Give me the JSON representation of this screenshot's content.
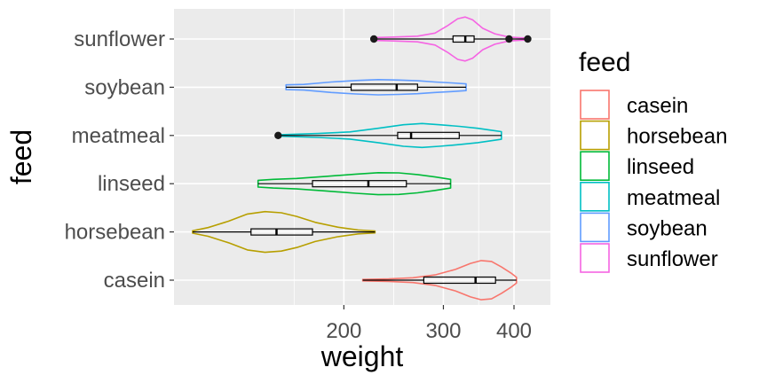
{
  "chart_data": {
    "type": "violin",
    "orientation": "horizontal",
    "x_scale": "log10",
    "xlabel": "weight",
    "ylabel": "feed",
    "xlim": [
      108,
      430
    ],
    "x_ticks": [
      200,
      300,
      400
    ],
    "x_tick_labels": [
      "200",
      "300",
      "400"
    ],
    "categories": [
      "casein",
      "horsebean",
      "linseed",
      "meatmeal",
      "soybean",
      "sunflower"
    ],
    "legend": {
      "title": "feed",
      "placement": "right",
      "entries": [
        "casein",
        "horsebean",
        "linseed",
        "meatmeal",
        "soybean",
        "sunflower"
      ]
    },
    "colors": {
      "casein": "#F8766D",
      "horsebean": "#B79F00",
      "linseed": "#00BA38",
      "meatmeal": "#00BFC4",
      "soybean": "#619CFF",
      "sunflower": "#F564E3"
    },
    "panel_background": "#EBEBEB",
    "grid": true,
    "series": [
      {
        "name": "casein",
        "min": 216,
        "max": 404,
        "q1": 277,
        "median": 342,
        "q3": 371,
        "outliers": [],
        "density": [
          [
            216,
            0.03
          ],
          [
            240,
            0.05
          ],
          [
            265,
            0.1
          ],
          [
            290,
            0.22
          ],
          [
            315,
            0.45
          ],
          [
            335,
            0.7
          ],
          [
            350,
            0.82
          ],
          [
            365,
            0.78
          ],
          [
            380,
            0.55
          ],
          [
            395,
            0.3
          ],
          [
            404,
            0.12
          ]
        ]
      },
      {
        "name": "horsebean",
        "min": 108,
        "max": 227,
        "q1": 137,
        "median": 152,
        "q3": 176,
        "outliers": [],
        "density": [
          [
            108,
            0.05
          ],
          [
            115,
            0.18
          ],
          [
            125,
            0.45
          ],
          [
            135,
            0.75
          ],
          [
            145,
            0.85
          ],
          [
            155,
            0.8
          ],
          [
            165,
            0.65
          ],
          [
            178,
            0.4
          ],
          [
            195,
            0.2
          ],
          [
            212,
            0.08
          ],
          [
            227,
            0.04
          ]
        ]
      },
      {
        "name": "linseed",
        "min": 141,
        "max": 309,
        "q1": 176,
        "median": 221,
        "q3": 258,
        "outliers": [],
        "density": [
          [
            141,
            0.14
          ],
          [
            150,
            0.18
          ],
          [
            165,
            0.22
          ],
          [
            185,
            0.3
          ],
          [
            210,
            0.4
          ],
          [
            230,
            0.46
          ],
          [
            250,
            0.45
          ],
          [
            270,
            0.38
          ],
          [
            290,
            0.28
          ],
          [
            309,
            0.18
          ]
        ]
      },
      {
        "name": "meatmeal",
        "min": 153,
        "max": 380,
        "q1": 249,
        "median": 263,
        "q3": 320,
        "outliers": [
          153
        ],
        "density": [
          [
            153,
            0.03
          ],
          [
            180,
            0.08
          ],
          [
            205,
            0.15
          ],
          [
            230,
            0.3
          ],
          [
            255,
            0.45
          ],
          [
            275,
            0.5
          ],
          [
            295,
            0.45
          ],
          [
            320,
            0.38
          ],
          [
            345,
            0.3
          ],
          [
            365,
            0.22
          ],
          [
            380,
            0.16
          ]
        ]
      },
      {
        "name": "soybean",
        "min": 158,
        "max": 329,
        "q1": 206,
        "median": 248,
        "q3": 270,
        "outliers": [],
        "density": [
          [
            158,
            0.1
          ],
          [
            170,
            0.12
          ],
          [
            190,
            0.22
          ],
          [
            210,
            0.28
          ],
          [
            230,
            0.32
          ],
          [
            250,
            0.3
          ],
          [
            270,
            0.27
          ],
          [
            290,
            0.22
          ],
          [
            310,
            0.18
          ],
          [
            329,
            0.14
          ]
        ]
      },
      {
        "name": "sunflower",
        "min": 226,
        "max": 423,
        "q1": 312,
        "median": 328,
        "q3": 340,
        "outliers": [
          226,
          392,
          423
        ],
        "density": [
          [
            226,
            0.06
          ],
          [
            245,
            0.08
          ],
          [
            270,
            0.12
          ],
          [
            290,
            0.25
          ],
          [
            305,
            0.55
          ],
          [
            318,
            0.85
          ],
          [
            328,
            0.92
          ],
          [
            338,
            0.8
          ],
          [
            352,
            0.45
          ],
          [
            370,
            0.22
          ],
          [
            392,
            0.08
          ],
          [
            410,
            0.05
          ],
          [
            423,
            0.04
          ]
        ]
      }
    ]
  }
}
